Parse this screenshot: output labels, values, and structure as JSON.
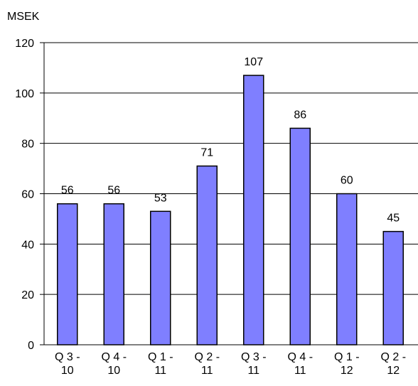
{
  "chart_data": {
    "type": "bar",
    "y_label": "MSEK",
    "categories": [
      "Q 3 - 10",
      "Q 4 - 10",
      "Q 1 - 11",
      "Q 2 - 11",
      "Q 3 - 11",
      "Q 4 - 11",
      "Q 1 - 12",
      "Q 2 - 12"
    ],
    "values": [
      56,
      56,
      53,
      71,
      107,
      86,
      60,
      45
    ],
    "color": "#7f7fff",
    "ylim": [
      0,
      120
    ],
    "yticks": [
      0,
      20,
      40,
      60,
      80,
      100,
      120
    ],
    "grid": true
  }
}
